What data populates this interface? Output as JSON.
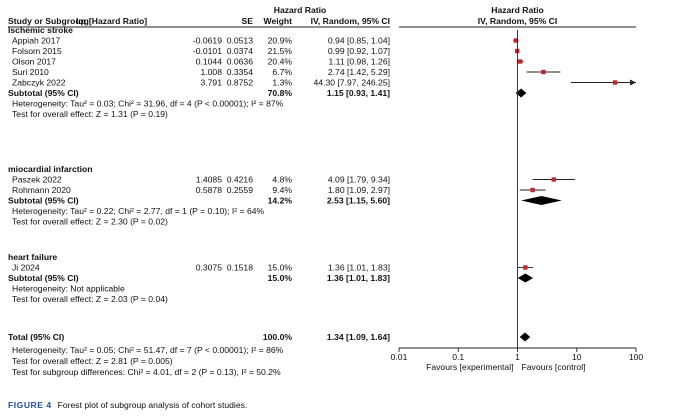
{
  "chart_data": {
    "type": "forest",
    "title": "Hazard Ratio",
    "subtitle": "IV, Random, 95% CI",
    "columns": [
      "Study or Subgroup",
      "log[Hazard Ratio]",
      "SE",
      "Weight",
      "IV, Random, 95% CI"
    ],
    "axis": {
      "scale": "log",
      "min": 0.01,
      "max": 100,
      "ticks": [
        0.01,
        0.1,
        1,
        10,
        100
      ],
      "tick_labels": [
        "0.01",
        "0.1",
        "1",
        "10",
        "100"
      ]
    },
    "favours_left": "Favours [experimental]",
    "favours_right": "Favours [control]",
    "subgroups": [
      {
        "name": "Ischemic stroke",
        "studies": [
          {
            "study": "Appiah 2017",
            "loghr": "-0.0619",
            "se": "0.0513",
            "weight": "20.9%",
            "ci_text": "0.94 [0.85, 1.04]",
            "hr": 0.94,
            "lo": 0.85,
            "hi": 1.04
          },
          {
            "study": "Folsom 2015",
            "loghr": "-0.0101",
            "se": "0.0374",
            "weight": "21.5%",
            "ci_text": "0.99 [0.92, 1.07]",
            "hr": 0.99,
            "lo": 0.92,
            "hi": 1.07
          },
          {
            "study": "Olson 2017",
            "loghr": "0.1044",
            "se": "0.0636",
            "weight": "20.4%",
            "ci_text": "1.11 [0.98, 1.26]",
            "hr": 1.11,
            "lo": 0.98,
            "hi": 1.26
          },
          {
            "study": "Suri 2010",
            "loghr": "1.008",
            "se": "0.3354",
            "weight": "6.7%",
            "ci_text": "2.74 [1.42, 5.29]",
            "hr": 2.74,
            "lo": 1.42,
            "hi": 5.29
          },
          {
            "study": "Zabczyk 2022",
            "loghr": "3.791",
            "se": "0.8752",
            "weight": "1.3%",
            "ci_text": "44.30 [7.97, 246.25]",
            "hr": 44.3,
            "lo": 7.97,
            "hi": 246.25
          }
        ],
        "subtotal_label": "Subtotal (95% CI)",
        "subtotal_weight": "70.8%",
        "subtotal_text": "1.15 [0.93, 1.41]",
        "subtotal_hr": 1.15,
        "subtotal_lo": 0.93,
        "subtotal_hi": 1.41,
        "heterogeneity": "Heterogeneity: Tau² = 0.03; Chi² = 31.96, df = 4 (P < 0.00001); I² = 87%",
        "overall_test": "Test for overall effect: Z = 1.31 (P = 0.19)"
      },
      {
        "name": "miocardial infarction",
        "studies": [
          {
            "study": "Paszek 2022",
            "loghr": "1.4085",
            "se": "0.4216",
            "weight": "4.8%",
            "ci_text": "4.09 [1.79, 9.34]",
            "hr": 4.09,
            "lo": 1.79,
            "hi": 9.34
          },
          {
            "study": "Rohmann 2020",
            "loghr": "0.5878",
            "se": "0.2559",
            "weight": "9.4%",
            "ci_text": "1.80 [1.09, 2.97]",
            "hr": 1.8,
            "lo": 1.09,
            "hi": 2.97
          }
        ],
        "subtotal_label": "Subtotal (95% CI)",
        "subtotal_weight": "14.2%",
        "subtotal_text": "2.53 [1.15, 5.60]",
        "subtotal_hr": 2.53,
        "subtotal_lo": 1.15,
        "subtotal_hi": 5.6,
        "heterogeneity": "Heterogeneity: Tau² = 0.22; Chi² = 2.77, df = 1 (P = 0.10); I² = 64%",
        "overall_test": "Test for overall effect: Z = 2.30 (P = 0.02)"
      },
      {
        "name": "heart failure",
        "studies": [
          {
            "study": "Ji 2024",
            "loghr": "0.3075",
            "se": "0.1518",
            "weight": "15.0%",
            "ci_text": "1.36 [1.01, 1.83]",
            "hr": 1.36,
            "lo": 1.01,
            "hi": 1.83
          }
        ],
        "subtotal_label": "Subtotal (95% CI)",
        "subtotal_weight": "15.0%",
        "subtotal_text": "1.36 [1.01, 1.83]",
        "subtotal_hr": 1.36,
        "subtotal_lo": 1.01,
        "subtotal_hi": 1.83,
        "heterogeneity": "Heterogeneity: Not applicable",
        "overall_test": "Test for overall effect: Z = 2.03 (P = 0.04)"
      }
    ],
    "total": {
      "label": "Total (95% CI)",
      "weight": "100.0%",
      "text": "1.34 [1.09, 1.64]",
      "hr": 1.34,
      "lo": 1.09,
      "hi": 1.64,
      "heterogeneity": "Heterogeneity: Tau² = 0.05; Chi² = 51.47, df = 7 (P < 0.00001); I² = 86%",
      "overall_test": "Test for overall effect: Z = 2.81 (P = 0.005)",
      "subgroup_test": "Test for subgroup differences: Chi² = 4.01, df = 2 (P = 0.13), I² = 50.2%"
    }
  },
  "caption": {
    "label": "FIGURE 4",
    "text": "Forest plot of subgroup analysis of cohort studies."
  },
  "colors": {
    "marker": "#c0282d",
    "line": "#222222",
    "caption_label": "#1f4ea8"
  }
}
